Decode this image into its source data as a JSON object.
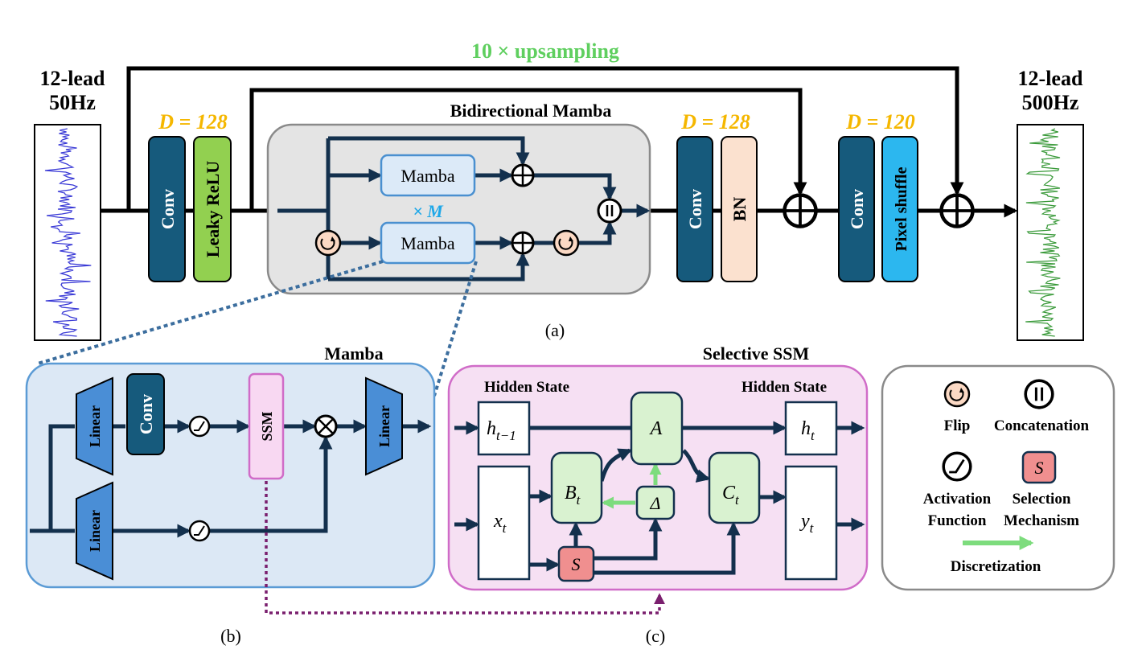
{
  "colors": {
    "line": "#13304d",
    "conv": "#165a7c",
    "leaky_relu": "#92d050",
    "bn": "#fbe1cf",
    "pixel_shuffle": "#2cb7ef",
    "dim_label": "#f5b700",
    "upsampling": "#5fcf5f",
    "mamba_block": "#dceaf8",
    "panel_b": "#dce8f5",
    "panel_c": "#f6e0f3",
    "green_box": "#d9f2d0",
    "selection": "#f08f8f",
    "input_signal": "#3a3ad6",
    "output_signal": "#3a9a3a"
  },
  "a": {
    "label": "(a)",
    "upsampling": "10 × upsampling",
    "input": {
      "line1": "12-lead",
      "line2": "50Hz"
    },
    "output": {
      "line1": "12-lead",
      "line2": "500Hz"
    },
    "dim1": "D = 128",
    "dim2": "D = 128",
    "dim3": "D = 120",
    "conv": "Conv",
    "leaky_relu": "Leaky ReLU",
    "bn": "BN",
    "pixel_shuffle": "Pixel shuffle",
    "bimamba": {
      "title": "Bidirectional Mamba",
      "mamba1": "Mamba",
      "mamba2": "Mamba",
      "repeat": "× M"
    }
  },
  "b": {
    "label": "(b)",
    "title": "Mamba",
    "linear1": "Linear",
    "linear2": "Linear",
    "linear3": "Linear",
    "conv": "Conv",
    "ssm": "SSM"
  },
  "c": {
    "label": "(c)",
    "title": "Selective SSM",
    "hidden_left": "Hidden State",
    "hidden_right": "Hidden State",
    "h_prev": {
      "base": "h",
      "sub": "t−1"
    },
    "h_t": {
      "base": "h",
      "sub": "t"
    },
    "x_t": {
      "base": "x",
      "sub": "t"
    },
    "y_t": {
      "base": "y",
      "sub": "t"
    },
    "A": "A",
    "B_t": {
      "base": "B",
      "sub": "t"
    },
    "C_t": {
      "base": "C",
      "sub": "t"
    },
    "delta": "Δ",
    "S": "S"
  },
  "legend": {
    "flip": "Flip",
    "concat": "Concatenation",
    "activation1": "Activation",
    "activation2": "Function",
    "selection_symbol": "S",
    "selection1": "Selection",
    "selection2": "Mechanism",
    "discretization": "Discretization"
  }
}
